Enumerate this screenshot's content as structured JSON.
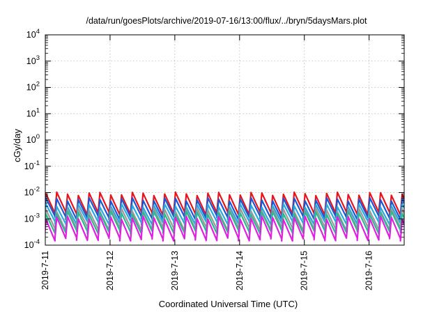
{
  "chart_data": {
    "type": "line",
    "title": "/data/run/goesPlots/archive/2019-07-16/13:00/flux/../bryn/5daysMars.plot",
    "xlabel": "Coordinated Universal Time (UTC)",
    "ylabel": "cGy/day",
    "y_scale": "log",
    "ylim": [
      0.0001,
      10000
    ],
    "xlim": [
      "2019-07-11",
      "2019-07-16 13:00"
    ],
    "grid": true,
    "legend": "none",
    "x_ticks": [
      "2019-7-11",
      "2019-7-12",
      "2019-7-13",
      "2019-7-14",
      "2019-7-15",
      "2019-7-16"
    ],
    "y_ticks": [
      {
        "base": "10",
        "exp": "-4"
      },
      {
        "base": "10",
        "exp": "-3"
      },
      {
        "base": "10",
        "exp": "-2"
      },
      {
        "base": "10",
        "exp": "-1"
      },
      {
        "base": "10",
        "exp": "0"
      },
      {
        "base": "10",
        "exp": "1"
      },
      {
        "base": "10",
        "exp": "2"
      },
      {
        "base": "10",
        "exp": "3"
      },
      {
        "base": "10",
        "exp": "4"
      }
    ],
    "sawtooth_period_hours": 4,
    "series": [
      {
        "color": "#e8141c",
        "peak": 0.009,
        "trough": 0.0016
      },
      {
        "color": "#1a57d6",
        "peak": 0.0055,
        "trough": 0.0011
      },
      {
        "color": "#27a9e1",
        "peak": 0.0032,
        "trough": 0.0007
      },
      {
        "color": "#9a9a9a",
        "peak": 0.0022,
        "trough": 0.00042
      },
      {
        "color": "#2fb890",
        "peak": 0.0017,
        "trough": 0.00032
      },
      {
        "color": "#e020e0",
        "peak": 0.0011,
        "trough": 0.00017
      }
    ]
  }
}
